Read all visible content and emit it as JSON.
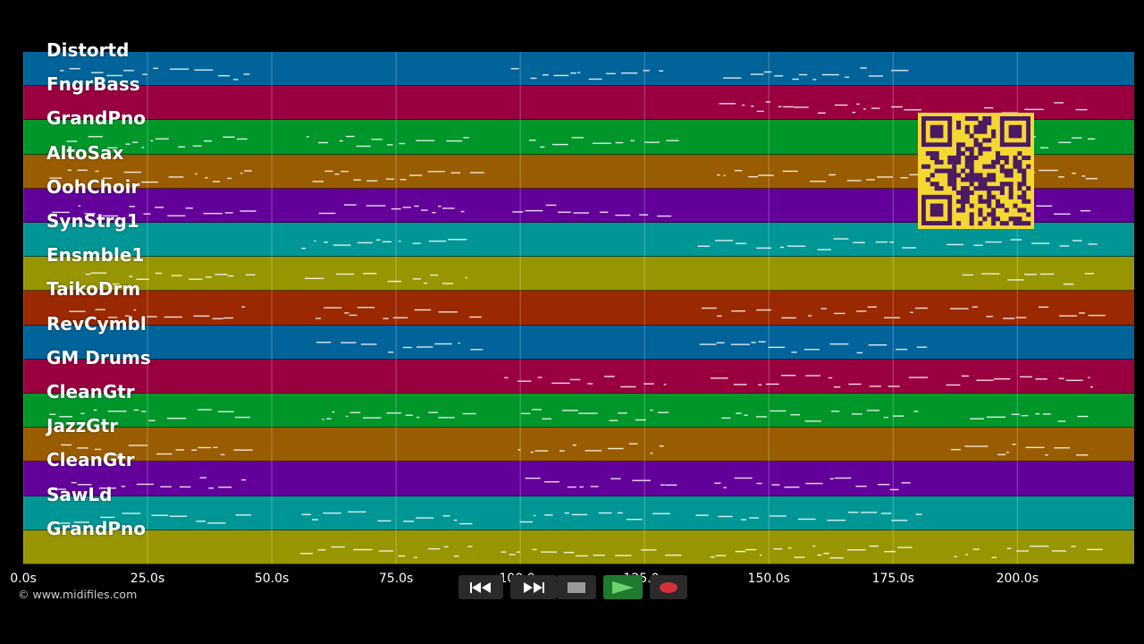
{
  "tracks": [
    {
      "name": "Distortd",
      "color": "#00639a"
    },
    {
      "name": "FngrBass",
      "color": "#9a0040"
    },
    {
      "name": "GrandPno",
      "color": "#00962a"
    },
    {
      "name": "AltoSax",
      "color": "#9a5c00"
    },
    {
      "name": "OohChoir",
      "color": "#63009a"
    },
    {
      "name": "SynStrg1",
      "color": "#009696"
    },
    {
      "name": "Ensmble1",
      "color": "#979600"
    },
    {
      "name": "TaikoDrm",
      "color": "#9a2800"
    },
    {
      "name": "RevCymbl",
      "color": "#00639a"
    },
    {
      "name": "GM Drums",
      "color": "#9a0040"
    },
    {
      "name": "CleanGtr",
      "color": "#00962a"
    },
    {
      "name": "JazzGtr",
      "color": "#9a5c00"
    },
    {
      "name": "CleanGtr",
      "color": "#63009a"
    },
    {
      "name": "SawLd",
      "color": "#009696"
    },
    {
      "name": "GrandPno",
      "color": "#979600"
    }
  ],
  "timeline": {
    "ticks": [
      "0.0s",
      "25.0s",
      "50.0s",
      "75.0s",
      "100.0s",
      "125.0s",
      "150.0s",
      "175.0s",
      "200.0s"
    ],
    "tick_values": [
      0,
      25,
      50,
      75,
      100,
      125,
      150,
      175,
      200
    ],
    "max_seconds": 223.5
  },
  "credit": "© www.midifiles.com",
  "transport": {
    "rewind_icon": "rewind-icon",
    "fastforward_icon": "fast-forward-icon",
    "stop_icon": "stop-icon",
    "play_icon": "play-icon",
    "record_icon": "record-icon",
    "colors": {
      "button_bg": "#2a2a2a",
      "play_bg": "#1e7a2e",
      "play_glyph": "#6ed36e",
      "record_glyph": "#d8303a",
      "stop_glyph": "#9a9a9a"
    }
  },
  "qr_icon": "qr-code-icon"
}
